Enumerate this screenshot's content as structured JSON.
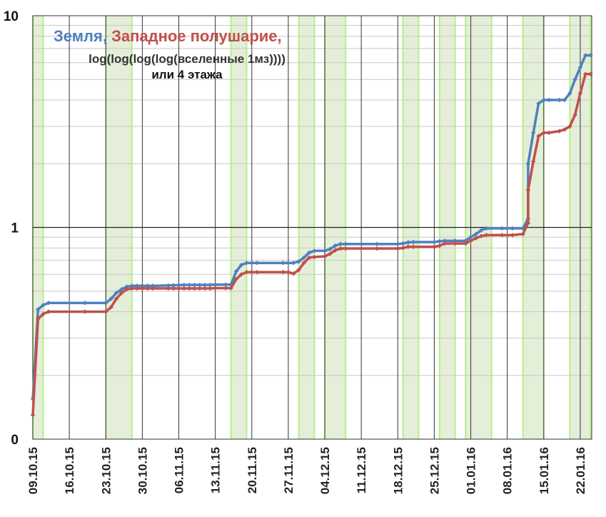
{
  "chart_data": {
    "type": "line",
    "title_parts": [
      {
        "text": "Земля",
        "color": "#4f81bd"
      },
      {
        "text": ", ",
        "color": "#4f81bd"
      },
      {
        "text": "Западное полушарие,",
        "color": "#c0504d"
      }
    ],
    "title_line2": "log(log(log(log(вселенные 1мз))))",
    "title_line3": "или 4 этажа",
    "y_scale": "log",
    "y_ticks": [
      {
        "value": 0.1,
        "label": "0"
      },
      {
        "value": 1,
        "label": "1"
      },
      {
        "value": 10,
        "label": "10"
      }
    ],
    "ylim": [
      0.1,
      10
    ],
    "xlim": [
      "2015-10-09",
      "2016-01-24"
    ],
    "x_ticks": [
      "09.10.15",
      "16.10.15",
      "23.10.15",
      "30.10.15",
      "06.11.15",
      "13.11.15",
      "20.11.15",
      "27.11.15",
      "04.12.15",
      "11.12.15",
      "18.12.15",
      "25.12.15",
      "01.01.16",
      "08.01.16",
      "15.01.16",
      "22.01.16"
    ],
    "x_tick_dates": [
      "2015-10-09",
      "2015-10-16",
      "2015-10-23",
      "2015-10-30",
      "2015-11-06",
      "2015-11-13",
      "2015-11-20",
      "2015-11-27",
      "2015-12-04",
      "2015-12-11",
      "2015-12-18",
      "2015-12-25",
      "2016-01-01",
      "2016-01-08",
      "2016-01-15",
      "2016-01-22"
    ],
    "shaded_periods": [
      [
        "2015-10-09",
        "2015-10-11"
      ],
      [
        "2015-10-23",
        "2015-10-28"
      ],
      [
        "2015-11-16",
        "2015-11-19"
      ],
      [
        "2015-11-29",
        "2015-12-02"
      ],
      [
        "2015-12-04",
        "2015-12-08"
      ],
      [
        "2015-12-19",
        "2015-12-22"
      ],
      [
        "2015-12-26",
        "2015-12-29"
      ],
      [
        "2015-12-31",
        "2016-01-05"
      ],
      [
        "2016-01-11",
        "2016-01-15"
      ],
      [
        "2016-01-20",
        "2016-01-24"
      ]
    ],
    "grid": true,
    "series": [
      {
        "name": "Земля",
        "color": "#4f81bd",
        "points": [
          [
            "2015-10-09",
            0.155
          ],
          [
            "2015-10-10",
            0.41
          ],
          [
            "2015-10-11",
            0.43
          ],
          [
            "2015-10-12",
            0.44
          ],
          [
            "2015-10-19",
            0.44
          ],
          [
            "2015-10-23",
            0.44
          ],
          [
            "2015-10-24",
            0.46
          ],
          [
            "2015-10-25",
            0.49
          ],
          [
            "2015-10-26",
            0.51
          ],
          [
            "2015-10-27",
            0.525
          ],
          [
            "2015-10-28",
            0.53
          ],
          [
            "2015-10-29",
            0.53
          ],
          [
            "2015-10-30",
            0.53
          ],
          [
            "2015-10-31",
            0.53
          ],
          [
            "2015-11-01",
            0.53
          ],
          [
            "2015-11-04",
            0.532
          ],
          [
            "2015-11-05",
            0.533
          ],
          [
            "2015-11-06",
            0.534
          ],
          [
            "2015-11-07",
            0.535
          ],
          [
            "2015-11-08",
            0.535
          ],
          [
            "2015-11-09",
            0.535
          ],
          [
            "2015-11-10",
            0.535
          ],
          [
            "2015-11-11",
            0.535
          ],
          [
            "2015-11-12",
            0.535
          ],
          [
            "2015-11-13",
            0.537
          ],
          [
            "2015-11-15",
            0.537
          ],
          [
            "2015-11-16",
            0.537
          ],
          [
            "2015-11-17",
            0.62
          ],
          [
            "2015-11-18",
            0.665
          ],
          [
            "2015-11-19",
            0.68
          ],
          [
            "2015-11-20",
            0.68
          ],
          [
            "2015-11-21",
            0.68
          ],
          [
            "2015-11-26",
            0.68
          ],
          [
            "2015-11-27",
            0.68
          ],
          [
            "2015-11-28",
            0.68
          ],
          [
            "2015-11-29",
            0.69
          ],
          [
            "2015-11-30",
            0.72
          ],
          [
            "2015-12-01",
            0.76
          ],
          [
            "2015-12-02",
            0.775
          ],
          [
            "2015-12-04",
            0.775
          ],
          [
            "2015-12-05",
            0.79
          ],
          [
            "2015-12-06",
            0.82
          ],
          [
            "2015-12-07",
            0.835
          ],
          [
            "2015-12-08",
            0.835
          ],
          [
            "2015-12-14",
            0.835
          ],
          [
            "2015-12-18",
            0.835
          ],
          [
            "2015-12-19",
            0.84
          ],
          [
            "2015-12-20",
            0.85
          ],
          [
            "2015-12-21",
            0.853
          ],
          [
            "2015-12-25",
            0.853
          ],
          [
            "2015-12-26",
            0.86
          ],
          [
            "2015-12-27",
            0.865
          ],
          [
            "2015-12-29",
            0.865
          ],
          [
            "2015-12-31",
            0.865
          ],
          [
            "2016-01-01",
            0.9
          ],
          [
            "2016-01-02",
            0.93
          ],
          [
            "2016-01-03",
            0.97
          ],
          [
            "2016-01-04",
            0.99
          ],
          [
            "2016-01-07",
            0.99
          ],
          [
            "2016-01-09",
            0.99
          ],
          [
            "2016-01-11",
            0.99
          ],
          [
            "2016-01-12",
            1.1
          ],
          [
            "2016-01-12",
            2.0
          ],
          [
            "2016-01-13",
            2.8
          ],
          [
            "2016-01-14",
            3.85
          ],
          [
            "2016-01-15",
            4.0
          ],
          [
            "2016-01-16",
            4.0
          ],
          [
            "2016-01-18",
            4.0
          ],
          [
            "2016-01-19",
            4.0
          ],
          [
            "2016-01-20",
            4.3
          ],
          [
            "2016-01-21",
            5.0
          ],
          [
            "2016-01-22",
            5.7
          ],
          [
            "2016-01-23",
            6.5
          ],
          [
            "2016-01-24",
            6.5
          ]
        ]
      },
      {
        "name": "Западное полушарие",
        "color": "#c0504d",
        "points": [
          [
            "2015-10-09",
            0.13
          ],
          [
            "2015-10-10",
            0.37
          ],
          [
            "2015-10-11",
            0.39
          ],
          [
            "2015-10-12",
            0.4
          ],
          [
            "2015-10-19",
            0.4
          ],
          [
            "2015-10-23",
            0.4
          ],
          [
            "2015-10-24",
            0.42
          ],
          [
            "2015-10-25",
            0.46
          ],
          [
            "2015-10-26",
            0.49
          ],
          [
            "2015-10-27",
            0.51
          ],
          [
            "2015-10-28",
            0.515
          ],
          [
            "2015-10-29",
            0.515
          ],
          [
            "2015-10-30",
            0.515
          ],
          [
            "2015-10-31",
            0.515
          ],
          [
            "2015-11-01",
            0.515
          ],
          [
            "2015-11-04",
            0.515
          ],
          [
            "2015-11-05",
            0.515
          ],
          [
            "2015-11-06",
            0.515
          ],
          [
            "2015-11-07",
            0.515
          ],
          [
            "2015-11-08",
            0.515
          ],
          [
            "2015-11-09",
            0.515
          ],
          [
            "2015-11-10",
            0.515
          ],
          [
            "2015-11-11",
            0.515
          ],
          [
            "2015-11-12",
            0.515
          ],
          [
            "2015-11-13",
            0.517
          ],
          [
            "2015-11-15",
            0.517
          ],
          [
            "2015-11-16",
            0.517
          ],
          [
            "2015-11-17",
            0.57
          ],
          [
            "2015-11-18",
            0.6
          ],
          [
            "2015-11-19",
            0.615
          ],
          [
            "2015-11-20",
            0.615
          ],
          [
            "2015-11-21",
            0.615
          ],
          [
            "2015-11-26",
            0.615
          ],
          [
            "2015-11-27",
            0.615
          ],
          [
            "2015-11-28",
            0.605
          ],
          [
            "2015-11-29",
            0.63
          ],
          [
            "2015-11-30",
            0.68
          ],
          [
            "2015-12-01",
            0.72
          ],
          [
            "2015-12-02",
            0.725
          ],
          [
            "2015-12-04",
            0.73
          ],
          [
            "2015-12-05",
            0.75
          ],
          [
            "2015-12-06",
            0.78
          ],
          [
            "2015-12-07",
            0.795
          ],
          [
            "2015-12-08",
            0.795
          ],
          [
            "2015-12-14",
            0.795
          ],
          [
            "2015-12-18",
            0.795
          ],
          [
            "2015-12-19",
            0.8
          ],
          [
            "2015-12-20",
            0.81
          ],
          [
            "2015-12-21",
            0.81
          ],
          [
            "2015-12-25",
            0.81
          ],
          [
            "2015-12-26",
            0.82
          ],
          [
            "2015-12-27",
            0.84
          ],
          [
            "2015-12-29",
            0.84
          ],
          [
            "2015-12-31",
            0.84
          ],
          [
            "2016-01-01",
            0.865
          ],
          [
            "2016-01-02",
            0.89
          ],
          [
            "2016-01-03",
            0.91
          ],
          [
            "2016-01-04",
            0.92
          ],
          [
            "2016-01-07",
            0.92
          ],
          [
            "2016-01-09",
            0.92
          ],
          [
            "2016-01-11",
            0.93
          ],
          [
            "2016-01-12",
            1.05
          ],
          [
            "2016-01-12",
            1.5
          ],
          [
            "2016-01-13",
            2.05
          ],
          [
            "2016-01-14",
            2.7
          ],
          [
            "2016-01-15",
            2.8
          ],
          [
            "2016-01-16",
            2.8
          ],
          [
            "2016-01-18",
            2.85
          ],
          [
            "2016-01-19",
            2.9
          ],
          [
            "2016-01-20",
            3.0
          ],
          [
            "2016-01-21",
            3.4
          ],
          [
            "2016-01-22",
            4.3
          ],
          [
            "2016-01-23",
            5.3
          ],
          [
            "2016-01-24",
            5.3
          ]
        ]
      }
    ]
  }
}
